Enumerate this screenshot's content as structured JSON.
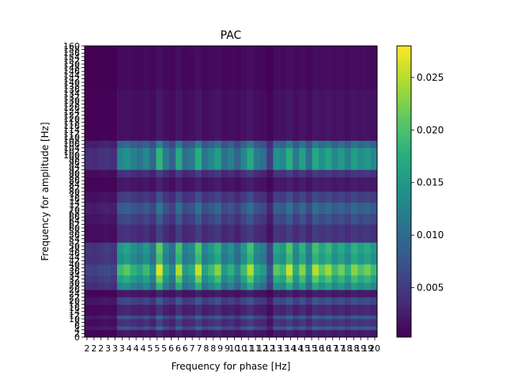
{
  "chart_data": {
    "type": "heatmap",
    "title": "PAC",
    "xlabel": "Frequency for phase [Hz]",
    "ylabel": "Frequency for amplitude [Hz]",
    "xlim": [
      2,
      20
    ],
    "ylim": [
      0,
      160
    ],
    "colormap": "viridis",
    "colorbar": {
      "range": [
        0.0003,
        0.028
      ],
      "ticks": [
        "0.005",
        "0.010",
        "0.015",
        "0.020",
        "0.025"
      ],
      "tick_values": [
        0.005,
        0.01,
        0.015,
        0.02,
        0.025
      ]
    },
    "x_tick_labels": [
      "2",
      "2",
      "2",
      "3",
      "3",
      "3",
      "4",
      "4",
      "4",
      "5",
      "5",
      "5",
      "6",
      "6",
      "6",
      "7",
      "7",
      "8",
      "8",
      "9",
      "9",
      "10",
      "10",
      "11",
      "11",
      "12",
      "12",
      "13",
      "13",
      "14",
      "14",
      "15",
      "15",
      "16",
      "16",
      "17",
      "17",
      "18",
      "18",
      "19",
      "19",
      "20"
    ],
    "y_tick_labels": [
      "0",
      "2",
      "4",
      "6",
      "8",
      "10",
      "12",
      "14",
      "16",
      "18",
      "20",
      "22",
      "24",
      "26",
      "28",
      "30",
      "32",
      "34",
      "36",
      "38",
      "40",
      "42",
      "44",
      "46",
      "48",
      "50",
      "52",
      "54",
      "56",
      "58",
      "60",
      "62",
      "64",
      "66",
      "68",
      "70",
      "72",
      "74",
      "76",
      "78",
      "80",
      "82",
      "84",
      "86",
      "88",
      "90",
      "92",
      "94",
      "96",
      "98",
      "100",
      "102",
      "104",
      "106",
      "108",
      "110",
      "112",
      "114",
      "116",
      "118",
      "120",
      "122",
      "124",
      "126",
      "128",
      "130",
      "132",
      "134",
      "136",
      "138",
      "140",
      "142",
      "144",
      "146",
      "148",
      "150",
      "152",
      "154",
      "156",
      "158",
      "160"
    ],
    "y_bands": [
      {
        "from": 0,
        "to": 4,
        "level": 0.002
      },
      {
        "from": 4,
        "to": 6,
        "level": 0.007
      },
      {
        "from": 6,
        "to": 10,
        "level": 0.004
      },
      {
        "from": 10,
        "to": 12,
        "level": 0.007
      },
      {
        "from": 12,
        "to": 18,
        "level": 0.003
      },
      {
        "from": 18,
        "to": 22,
        "level": 0.006
      },
      {
        "from": 22,
        "to": 26,
        "level": 0.002
      },
      {
        "from": 26,
        "to": 30,
        "level": 0.013
      },
      {
        "from": 30,
        "to": 34,
        "level": 0.016
      },
      {
        "from": 34,
        "to": 40,
        "level": 0.019
      },
      {
        "from": 40,
        "to": 46,
        "level": 0.014
      },
      {
        "from": 46,
        "to": 52,
        "level": 0.015
      },
      {
        "from": 52,
        "to": 62,
        "level": 0.004
      },
      {
        "from": 62,
        "to": 68,
        "level": 0.006
      },
      {
        "from": 68,
        "to": 74,
        "level": 0.008
      },
      {
        "from": 74,
        "to": 80,
        "level": 0.005
      },
      {
        "from": 80,
        "to": 88,
        "level": 0.002
      },
      {
        "from": 88,
        "to": 92,
        "level": 0.004
      },
      {
        "from": 92,
        "to": 104,
        "level": 0.013
      },
      {
        "from": 104,
        "to": 108,
        "level": 0.009
      },
      {
        "from": 108,
        "to": 136,
        "level": 0.0015
      },
      {
        "from": 136,
        "to": 160,
        "level": 0.001
      }
    ],
    "x_weights": [
      {
        "x": 2.0,
        "w": 0.3
      },
      {
        "x": 2.4,
        "w": 0.28
      },
      {
        "x": 2.8,
        "w": 0.32
      },
      {
        "x": 3.2,
        "w": 0.35
      },
      {
        "x": 3.6,
        "w": 0.3
      },
      {
        "x": 4.0,
        "w": 1.0
      },
      {
        "x": 4.4,
        "w": 1.1
      },
      {
        "x": 4.8,
        "w": 0.95
      },
      {
        "x": 5.2,
        "w": 0.85
      },
      {
        "x": 5.6,
        "w": 1.0
      },
      {
        "x": 6.0,
        "w": 0.75
      },
      {
        "x": 6.4,
        "w": 1.4
      },
      {
        "x": 6.8,
        "w": 0.9
      },
      {
        "x": 7.2,
        "w": 0.7
      },
      {
        "x": 7.6,
        "w": 1.3
      },
      {
        "x": 8.0,
        "w": 0.8
      },
      {
        "x": 8.4,
        "w": 0.9
      },
      {
        "x": 8.8,
        "w": 1.35
      },
      {
        "x": 9.2,
        "w": 0.85
      },
      {
        "x": 9.6,
        "w": 1.0
      },
      {
        "x": 10.0,
        "w": 1.2
      },
      {
        "x": 10.4,
        "w": 0.8
      },
      {
        "x": 10.8,
        "w": 0.95
      },
      {
        "x": 11.2,
        "w": 0.7
      },
      {
        "x": 11.6,
        "w": 1.0
      },
      {
        "x": 12.0,
        "w": 1.3
      },
      {
        "x": 12.4,
        "w": 0.9
      },
      {
        "x": 12.8,
        "w": 0.8
      },
      {
        "x": 13.2,
        "w": 0.4
      },
      {
        "x": 13.6,
        "w": 1.1
      },
      {
        "x": 14.0,
        "w": 1.0
      },
      {
        "x": 14.4,
        "w": 1.35
      },
      {
        "x": 14.8,
        "w": 0.9
      },
      {
        "x": 15.2,
        "w": 1.2
      },
      {
        "x": 15.6,
        "w": 0.8
      },
      {
        "x": 16.0,
        "w": 1.3
      },
      {
        "x": 16.4,
        "w": 1.1
      },
      {
        "x": 16.8,
        "w": 1.25
      },
      {
        "x": 17.2,
        "w": 1.0
      },
      {
        "x": 17.6,
        "w": 1.15
      },
      {
        "x": 18.0,
        "w": 0.95
      },
      {
        "x": 18.4,
        "w": 1.2
      },
      {
        "x": 18.8,
        "w": 1.05
      },
      {
        "x": 19.2,
        "w": 1.15
      },
      {
        "x": 19.6,
        "w": 1.0
      }
    ]
  }
}
